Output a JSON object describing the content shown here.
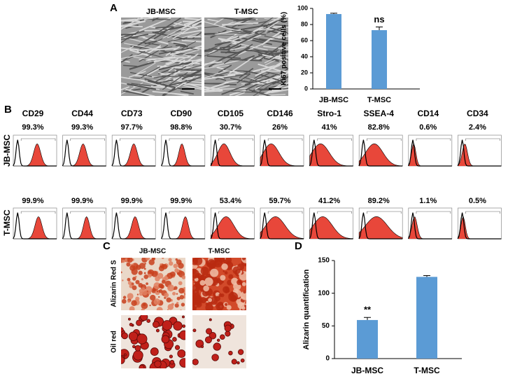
{
  "panel_labels": [
    "A",
    "B",
    "C",
    "D"
  ],
  "panel_a": {
    "images": [
      "JB-MSC",
      "T-MSC"
    ]
  },
  "chart_data": [
    {
      "type": "bar",
      "ylabel": "Ki67 positive cells (%)",
      "categories": [
        "JB-MSC",
        "T-MSC"
      ],
      "values": [
        93,
        73
      ],
      "errors": [
        1,
        4
      ],
      "color": "#5b9bd5",
      "ylim": [
        0,
        100
      ],
      "yticks": [
        0,
        20,
        40,
        60,
        80,
        100
      ],
      "annotations": [
        {
          "text": "ns",
          "category": "T-MSC"
        }
      ]
    },
    {
      "type": "bar",
      "ylabel": "Alizarin quantification",
      "categories": [
        "JB-MSC",
        "T-MSC"
      ],
      "values": [
        59,
        125
      ],
      "errors": [
        4,
        2
      ],
      "color": "#5b9bd5",
      "ylim": [
        0,
        150
      ],
      "yticks": [
        0,
        50,
        100,
        150
      ],
      "annotations": [
        {
          "text": "**",
          "category": "JB-MSC"
        }
      ]
    }
  ],
  "flow": {
    "markers": [
      "CD29",
      "CD44",
      "CD73",
      "CD90",
      "CD105",
      "CD146",
      "Stro-1",
      "SSEA-4",
      "CD14",
      "CD34"
    ],
    "rows": [
      {
        "label": "JB-MSC",
        "percents": [
          "99.3%",
          "99.3%",
          "97.7%",
          "98.8%",
          "30.7%",
          "26%",
          "41%",
          "82.8%",
          "0.6%",
          "2.4%"
        ]
      },
      {
        "label": "T-MSC",
        "percents": [
          "99.9%",
          "99.9%",
          "99.9%",
          "99.9%",
          "53.4%",
          "59.7%",
          "41.2%",
          "89.2%",
          "1.1%",
          "0.5%"
        ]
      }
    ]
  },
  "panel_c": {
    "columns": [
      "JB-MSC",
      "T-MSC"
    ],
    "rows": [
      "Alizarin Red S",
      "Oil red"
    ]
  }
}
